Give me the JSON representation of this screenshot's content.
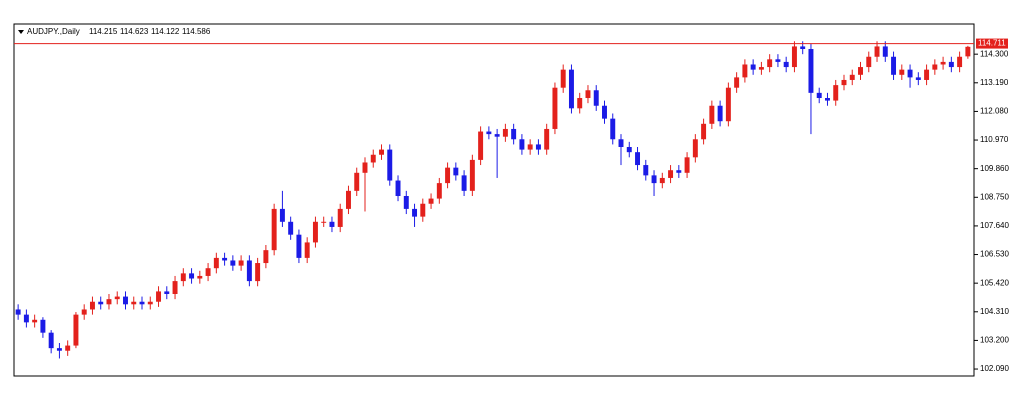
{
  "chart_data": {
    "type": "candlestick",
    "title": "AUDJPY.,Daily",
    "open": [
      104.4,
      104.2,
      103.9,
      104.0,
      103.5,
      102.9,
      102.8,
      103.0,
      104.2,
      104.4,
      104.7,
      104.6,
      104.8,
      104.9,
      104.6,
      104.7,
      104.6,
      104.7,
      105.1,
      105.0,
      105.5,
      105.8,
      105.6,
      105.7,
      106.0,
      106.4,
      106.3,
      106.1,
      106.3,
      105.5,
      106.2,
      106.7,
      108.3,
      107.8,
      107.3,
      106.4,
      107.0,
      107.8,
      107.8,
      107.6,
      108.3,
      109.0,
      109.7,
      110.1,
      110.4,
      110.6,
      109.4,
      108.8,
      108.3,
      108.0,
      108.5,
      108.7,
      109.3,
      109.9,
      109.6,
      109.0,
      110.2,
      111.3,
      111.2,
      111.1,
      111.4,
      111.0,
      110.6,
      110.8,
      110.6,
      111.4,
      113.0,
      113.7,
      112.2,
      112.6,
      112.9,
      112.3,
      111.8,
      111.0,
      110.7,
      110.5,
      110.0,
      109.6,
      109.3,
      109.5,
      109.8,
      109.7,
      110.3,
      111.0,
      111.6,
      112.3,
      111.7,
      113.0,
      113.4,
      113.9,
      113.7,
      113.8,
      114.1,
      114.0,
      113.8,
      114.6,
      114.5,
      112.8,
      112.6,
      112.5,
      113.1,
      113.3,
      113.5,
      113.8,
      114.2,
      114.6,
      114.2,
      113.5,
      113.7,
      113.4,
      113.3,
      113.7,
      113.9,
      114.0,
      113.8,
      114.215
    ],
    "high": [
      104.6,
      104.4,
      104.2,
      104.1,
      103.6,
      103.1,
      103.2,
      104.3,
      104.6,
      104.9,
      104.9,
      105.0,
      105.1,
      105.1,
      104.9,
      104.9,
      104.9,
      105.3,
      105.3,
      105.7,
      106.0,
      106.0,
      105.9,
      106.2,
      106.6,
      106.6,
      106.5,
      106.5,
      106.5,
      106.4,
      106.9,
      108.5,
      109.0,
      108.0,
      107.5,
      107.2,
      108.0,
      108.0,
      108.0,
      108.5,
      109.2,
      109.9,
      110.3,
      110.6,
      110.8,
      110.8,
      109.6,
      109.0,
      108.5,
      108.7,
      108.9,
      109.5,
      110.1,
      110.1,
      109.8,
      110.4,
      111.5,
      111.5,
      111.4,
      111.6,
      111.6,
      111.2,
      111.0,
      111.0,
      111.6,
      113.2,
      113.9,
      113.9,
      112.8,
      113.1,
      113.1,
      112.5,
      112.0,
      111.2,
      110.9,
      110.7,
      110.2,
      109.8,
      109.7,
      110.0,
      110.0,
      110.5,
      111.2,
      111.8,
      112.5,
      112.5,
      113.2,
      113.6,
      114.1,
      114.1,
      114.0,
      114.3,
      114.3,
      114.2,
      114.8,
      114.8,
      114.7,
      113.0,
      112.8,
      113.3,
      113.5,
      113.7,
      114.0,
      114.4,
      114.8,
      114.8,
      114.4,
      113.9,
      113.9,
      113.6,
      113.9,
      114.1,
      114.2,
      114.2,
      114.4,
      114.623
    ],
    "low": [
      104.0,
      103.7,
      103.7,
      103.3,
      102.7,
      102.5,
      102.6,
      102.9,
      104.0,
      104.2,
      104.4,
      104.4,
      104.6,
      104.4,
      104.4,
      104.4,
      104.4,
      104.5,
      104.8,
      104.8,
      105.3,
      105.4,
      105.4,
      105.5,
      105.8,
      106.1,
      105.9,
      105.9,
      105.3,
      105.3,
      106.0,
      106.5,
      107.6,
      107.1,
      106.2,
      106.2,
      106.8,
      107.6,
      107.4,
      107.4,
      108.1,
      108.8,
      108.2,
      109.9,
      110.2,
      109.2,
      108.6,
      108.1,
      107.6,
      107.8,
      108.3,
      108.5,
      109.1,
      109.4,
      108.8,
      108.8,
      110.0,
      111.0,
      109.5,
      110.9,
      110.8,
      110.4,
      110.4,
      110.4,
      110.4,
      111.2,
      112.8,
      112.0,
      112.0,
      112.4,
      112.1,
      111.6,
      110.8,
      110.0,
      110.3,
      109.8,
      109.4,
      108.8,
      109.1,
      109.3,
      109.5,
      109.5,
      110.1,
      110.8,
      111.4,
      111.5,
      111.5,
      112.8,
      113.2,
      113.5,
      113.5,
      113.6,
      113.8,
      113.6,
      113.6,
      114.3,
      111.2,
      112.4,
      112.3,
      112.3,
      112.9,
      113.1,
      113.3,
      113.6,
      114.0,
      114.0,
      113.3,
      113.3,
      113.0,
      113.1,
      113.1,
      113.5,
      113.7,
      113.6,
      113.6,
      114.122
    ],
    "close": [
      104.2,
      103.9,
      104.0,
      103.5,
      102.9,
      102.8,
      103.0,
      104.2,
      104.4,
      104.7,
      104.6,
      104.8,
      104.9,
      104.6,
      104.7,
      104.6,
      104.7,
      105.1,
      105.0,
      105.5,
      105.8,
      105.6,
      105.7,
      106.0,
      106.4,
      106.3,
      106.1,
      106.3,
      105.5,
      106.2,
      106.7,
      108.3,
      107.8,
      107.3,
      106.4,
      107.0,
      107.8,
      107.8,
      107.6,
      108.3,
      109.0,
      109.7,
      110.1,
      110.4,
      110.6,
      109.4,
      108.8,
      108.3,
      108.0,
      108.5,
      108.7,
      109.3,
      109.9,
      109.6,
      109.0,
      110.2,
      111.3,
      111.2,
      111.1,
      111.4,
      111.0,
      110.6,
      110.8,
      110.6,
      111.4,
      113.0,
      113.7,
      112.2,
      112.6,
      112.9,
      112.3,
      111.8,
      111.0,
      110.7,
      110.5,
      110.0,
      109.6,
      109.3,
      109.5,
      109.8,
      109.7,
      110.3,
      111.0,
      111.6,
      112.3,
      111.7,
      113.0,
      113.4,
      113.9,
      113.7,
      113.8,
      114.1,
      114.0,
      113.8,
      114.6,
      114.5,
      112.8,
      112.6,
      112.5,
      113.1,
      113.3,
      113.5,
      113.8,
      114.2,
      114.6,
      114.2,
      113.5,
      113.7,
      113.4,
      113.3,
      113.7,
      113.9,
      114.0,
      113.8,
      114.2,
      114.586
    ],
    "up_color": "#e3211c",
    "down_color": "#1b1be6",
    "price_line": 114.711,
    "price_line_color": "#e3211c",
    "ylim": [
      101.82,
      115.47
    ],
    "yticks": [
      {
        "value": 102.09,
        "label": "102.090"
      },
      {
        "value": 103.2,
        "label": "103.200"
      },
      {
        "value": 104.31,
        "label": "104.310"
      },
      {
        "value": 105.42,
        "label": "105.420"
      },
      {
        "value": 106.53,
        "label": "106.530"
      },
      {
        "value": 107.64,
        "label": "107.640"
      },
      {
        "value": 108.75,
        "label": "108.750"
      },
      {
        "value": 109.86,
        "label": "109.860"
      },
      {
        "value": 110.97,
        "label": "110.970"
      },
      {
        "value": 112.08,
        "label": "112.080"
      },
      {
        "value": 113.19,
        "label": "113.190"
      },
      {
        "value": 114.3,
        "label": "114.300"
      }
    ]
  }
}
